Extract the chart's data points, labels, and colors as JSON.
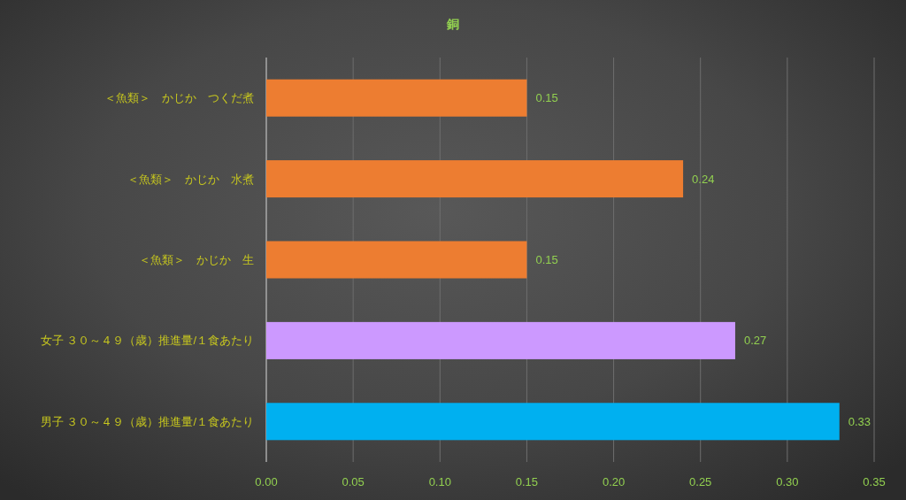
{
  "chart_data": {
    "type": "bar",
    "orientation": "horizontal",
    "title": "銅",
    "categories": [
      "＜魚類＞　かじか　つくだ煮",
      "＜魚類＞　かじか　水煮",
      "＜魚類＞　かじか　生",
      "女子 ３０～４９（歳）推進量/１食あたり",
      "男子 ３０～４９（歳）推進量/１食あたり"
    ],
    "values": [
      0.15,
      0.24,
      0.15,
      0.27,
      0.33
    ],
    "colors": [
      "#ed7d31",
      "#ed7d31",
      "#ed7d31",
      "#cc99ff",
      "#00b0f0"
    ],
    "xlim": [
      0,
      0.35
    ],
    "xticks": [
      {
        "value": 0,
        "label": "0.00"
      },
      {
        "value": 0.05,
        "label": "0.05"
      },
      {
        "value": 0.1,
        "label": "0.10"
      },
      {
        "value": 0.15,
        "label": "0.15"
      },
      {
        "value": 0.2,
        "label": "0.20"
      },
      {
        "value": 0.25,
        "label": "0.25"
      },
      {
        "value": 0.3,
        "label": "0.30"
      },
      {
        "value": 0.35,
        "label": "0.35"
      }
    ],
    "grid": "x",
    "data_labels": true
  }
}
